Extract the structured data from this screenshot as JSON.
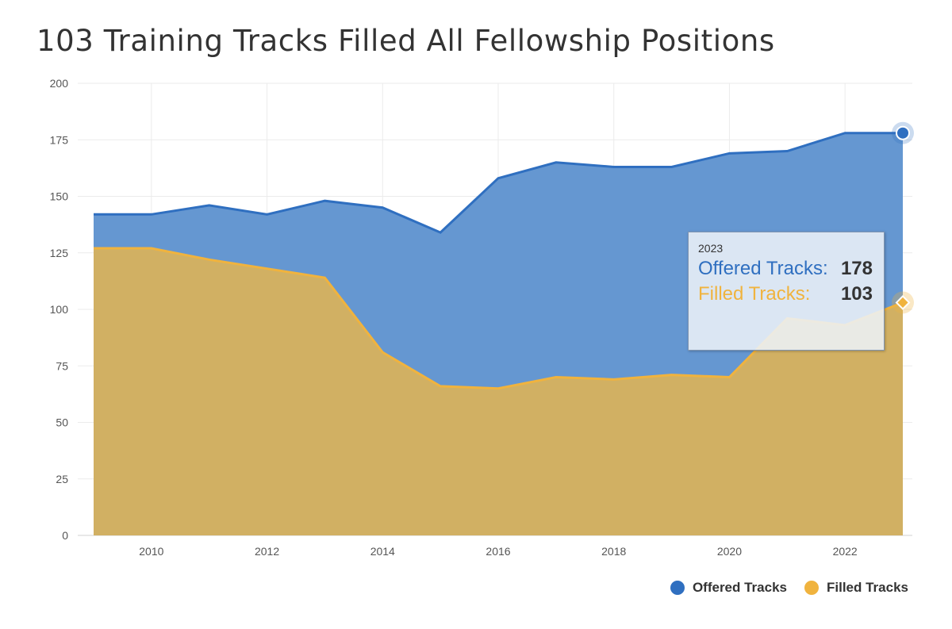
{
  "title": "103 Training Tracks Filled All Fellowship Positions",
  "colors": {
    "offered": "#2f6fc0",
    "offered_fill": "#6597d1",
    "filled": "#f0b33e",
    "filled_fill": "#d1b063",
    "grid": "#ebebeb"
  },
  "chart_data": {
    "type": "area",
    "title": "103 Training Tracks Filled All Fellowship Positions",
    "xlabel": "",
    "ylabel": "",
    "x": [
      2009,
      2010,
      2011,
      2012,
      2013,
      2014,
      2015,
      2016,
      2017,
      2018,
      2019,
      2020,
      2021,
      2022,
      2023
    ],
    "xlim": [
      2009,
      2023
    ],
    "ylim": [
      0,
      200
    ],
    "yticks": [
      0,
      25,
      50,
      75,
      100,
      125,
      150,
      175,
      200
    ],
    "xticks": [
      2010,
      2012,
      2014,
      2016,
      2018,
      2020,
      2022
    ],
    "grid": true,
    "legend_position": "bottom-right",
    "series": [
      {
        "name": "Offered Tracks",
        "values": [
          142,
          142,
          146,
          142,
          148,
          145,
          134,
          158,
          165,
          163,
          163,
          169,
          170,
          178,
          178
        ]
      },
      {
        "name": "Filled Tracks",
        "values": [
          127,
          127,
          122,
          118,
          114,
          81,
          66,
          65,
          70,
          69,
          71,
          70,
          96,
          93,
          103
        ]
      }
    ]
  },
  "tooltip": {
    "year": "2023",
    "offered_label": "Offered Tracks:",
    "offered_value": "178",
    "filled_label": "Filled Tracks:",
    "filled_value": "103"
  },
  "legend": {
    "offered": "Offered Tracks",
    "filled": "Filled Tracks"
  }
}
